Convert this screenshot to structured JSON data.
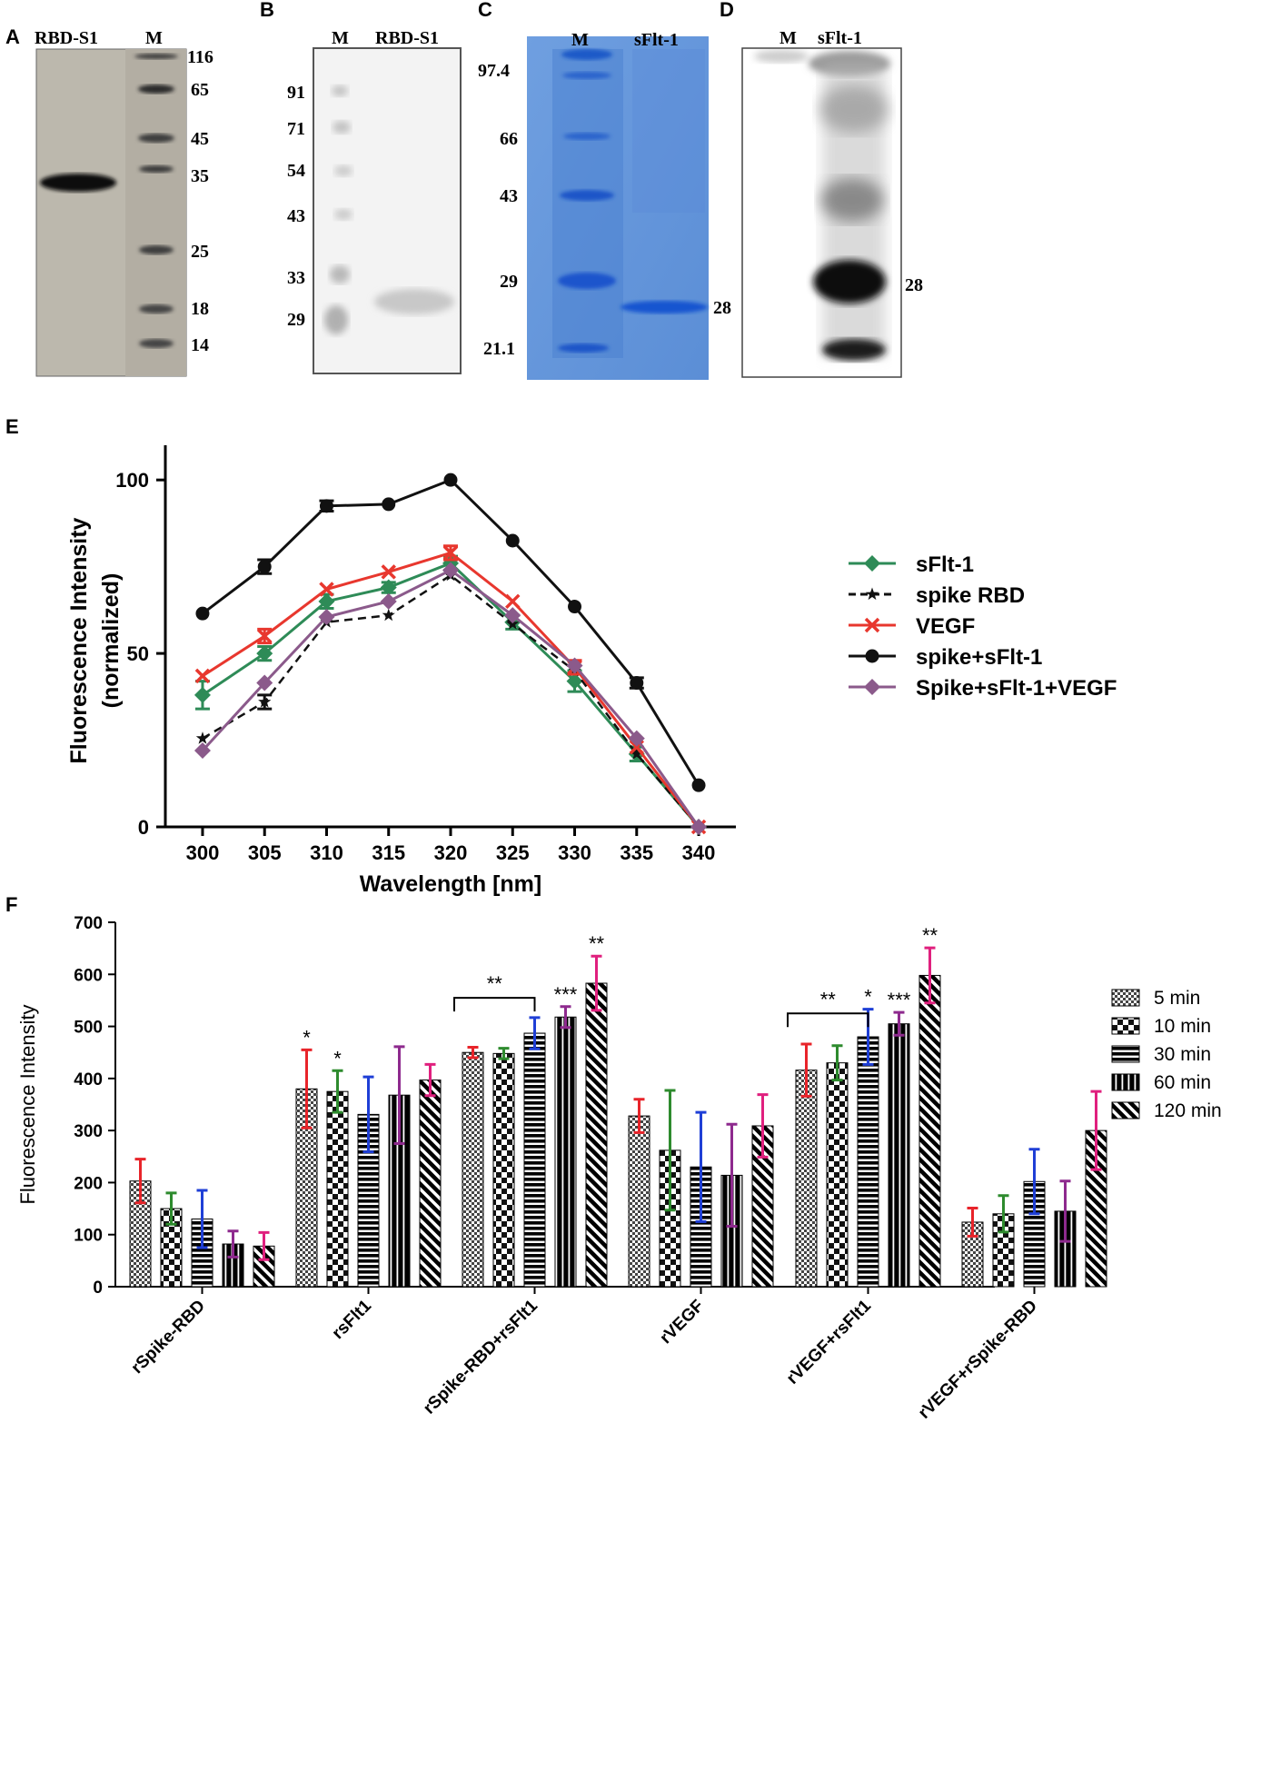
{
  "panel_letters": {
    "a": "A",
    "b": "B",
    "c": "C",
    "d": "D",
    "e": "E",
    "f": "F"
  },
  "blot_a": {
    "lanes": [
      "RBD-S1",
      "M"
    ],
    "markers": [
      "116",
      "65",
      "45",
      "35",
      "25",
      "18",
      "14"
    ]
  },
  "blot_b": {
    "lanes": [
      "M",
      "RBD-S1"
    ],
    "markers": [
      "91",
      "71",
      "54",
      "43",
      "33",
      "29"
    ]
  },
  "blot_c": {
    "lanes": [
      "M",
      "sFlt-1"
    ],
    "markers": [
      "97.4",
      "66",
      "43",
      "29",
      "21.1"
    ],
    "band_label": "28"
  },
  "blot_d": {
    "lanes": [
      "M",
      "sFlt-1"
    ],
    "band_label": "28"
  },
  "chart_data": [
    {
      "type": "line",
      "panel": "E",
      "xlabel": "Wavelength [nm]",
      "ylabel_line1": "Fluorescence Intensity",
      "ylabel_line2": "(normalized)",
      "x": [
        300,
        305,
        310,
        315,
        320,
        325,
        330,
        335,
        340
      ],
      "xticks": [
        "300",
        "305",
        "310",
        "315",
        "320",
        "325",
        "330",
        "335",
        "340"
      ],
      "yticks": [
        "0",
        "50",
        "100"
      ],
      "ylim": [
        0,
        110
      ],
      "xlim": [
        297,
        343
      ],
      "legend_position": "right",
      "series": [
        {
          "name": "sFlt-1",
          "color": "#2e8b57",
          "marker": "diamond",
          "dash": "solid",
          "values": [
            38,
            50,
            65,
            69,
            76,
            59,
            42,
            21,
            0
          ],
          "err": [
            4,
            2,
            2,
            1.5,
            2,
            2,
            3,
            2,
            0
          ]
        },
        {
          "name": "spike RBD",
          "color": "#111111",
          "marker": "star",
          "dash": "dashed",
          "values": [
            25.5,
            36,
            59,
            61,
            72.5,
            58.5,
            45,
            21,
            0
          ],
          "err": [
            0,
            2,
            0,
            0,
            0,
            0,
            0,
            0,
            0
          ]
        },
        {
          "name": "VEGF",
          "color": "#e8372e",
          "marker": "x",
          "dash": "solid",
          "values": [
            43.5,
            55,
            68.5,
            73.5,
            79,
            65,
            46,
            23,
            0
          ],
          "err": [
            0,
            2,
            0,
            0,
            2,
            0,
            2,
            0,
            0
          ]
        },
        {
          "name": "spike+sFlt-1",
          "color": "#111111",
          "marker": "circle",
          "dash": "solid",
          "values": [
            61.5,
            75,
            92.5,
            93,
            100,
            82.5,
            63.5,
            41.5,
            12
          ],
          "err": [
            0,
            2,
            1.5,
            0,
            0,
            0,
            0,
            1.5,
            0
          ]
        },
        {
          "name": "Spike+sFlt-1+VEGF",
          "color": "#8b5a8b",
          "marker": "diamond",
          "dash": "solid",
          "values": [
            22,
            41.5,
            60.5,
            65,
            74,
            61,
            46.5,
            25.5,
            0
          ],
          "err": [
            0,
            0,
            0,
            0,
            0,
            0,
            0,
            0,
            0
          ]
        }
      ]
    },
    {
      "type": "bar",
      "panel": "F",
      "ylabel": "Fluorescence Intensity",
      "yticks": [
        "0",
        "100",
        "200",
        "300",
        "400",
        "500",
        "600",
        "700"
      ],
      "ylim": [
        0,
        700
      ],
      "categories": [
        "rSpike-RBD",
        "rsFlt1",
        "rSpike-RBD+rsFlt1",
        "rVEGF",
        "rVEGF+rsFlt1",
        "rVEGF+rSpike-RBD"
      ],
      "series": [
        {
          "name": "5 min",
          "pattern": "checker-fine",
          "err_color": "#e8242a",
          "values": [
            203,
            380,
            450,
            328,
            416,
            124
          ],
          "err": [
            42,
            75,
            10,
            32,
            50,
            27
          ]
        },
        {
          "name": "10 min",
          "pattern": "checker-large",
          "err_color": "#2e8b2e",
          "values": [
            150,
            375,
            448,
            262,
            430,
            140
          ],
          "err": [
            30,
            40,
            10,
            115,
            33,
            35
          ]
        },
        {
          "name": "30 min",
          "pattern": "hlines",
          "err_color": "#1f3fd6",
          "values": [
            130,
            331,
            487,
            230,
            480,
            202
          ],
          "err": [
            55,
            72,
            30,
            105,
            53,
            62
          ]
        },
        {
          "name": "60 min",
          "pattern": "vlines",
          "err_color": "#8e2a8e",
          "values": [
            82,
            368,
            518,
            214,
            505,
            145
          ],
          "err": [
            25,
            93,
            20,
            98,
            22,
            58
          ]
        },
        {
          "name": "120 min",
          "pattern": "diag",
          "err_color": "#e0207e",
          "values": [
            78,
            397,
            583,
            309,
            598,
            300
          ],
          "err": [
            26,
            30,
            52,
            60,
            53,
            75
          ]
        }
      ],
      "annotations": [
        {
          "text": "*",
          "category": 1,
          "series": 0
        },
        {
          "text": "*",
          "category": 1,
          "series": 1
        },
        {
          "text": "***",
          "category": 2,
          "series": 3
        },
        {
          "text": "**",
          "category": 2,
          "series": 4
        },
        {
          "text": "*",
          "category": 4,
          "series": 2
        },
        {
          "text": "***",
          "category": 4,
          "series": 3
        },
        {
          "text": "**",
          "category": 4,
          "series": 4
        }
      ],
      "brackets": [
        {
          "text": "**",
          "category": 2,
          "from_series": 0,
          "to_series": 2,
          "y": 555
        },
        {
          "text": "**",
          "category": 4,
          "from_series": 0,
          "to_series": 2,
          "y": 525
        }
      ]
    }
  ]
}
